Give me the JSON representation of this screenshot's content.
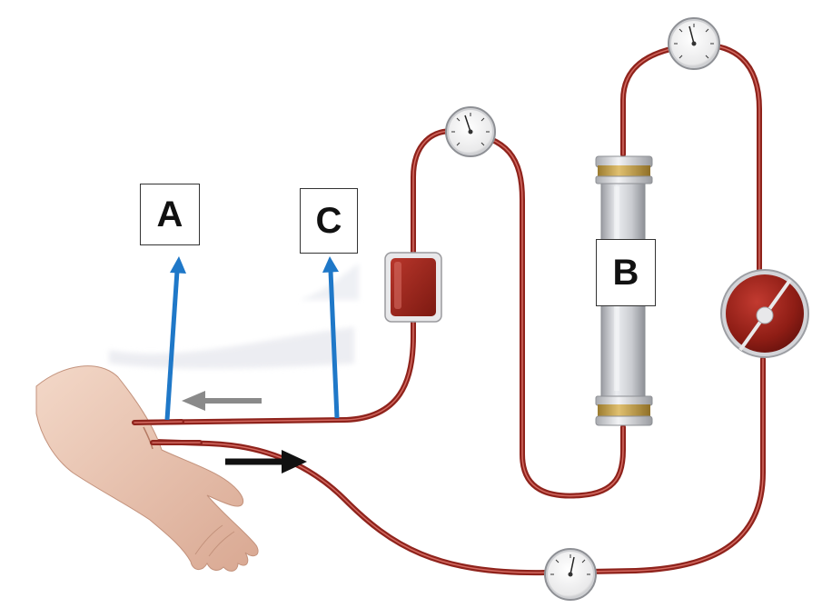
{
  "labels": {
    "a": "A",
    "b": "B",
    "c": "C"
  },
  "colors": {
    "tubing": "#9b2a22",
    "tubing_highlight": "#d0645c",
    "pointer_arrow": "#1f78c8",
    "return_arrow": "#8a8a8a",
    "flow_arrow": "#111111",
    "dialyzer_body": "#c9cbd0",
    "dialyzer_cap": "#c7a24a",
    "chamber": "#9b2218",
    "skin": "#e7c2ad"
  },
  "icons": {
    "gauges": [
      "pressure-gauge-icon",
      "pressure-gauge-icon",
      "pressure-gauge-icon",
      "pressure-gauge-icon"
    ],
    "pump": "blood-pump-icon",
    "chamber": "drip-chamber-icon",
    "dialyzer": "dialyzer-icon",
    "arm": "patient-arm-icon"
  }
}
